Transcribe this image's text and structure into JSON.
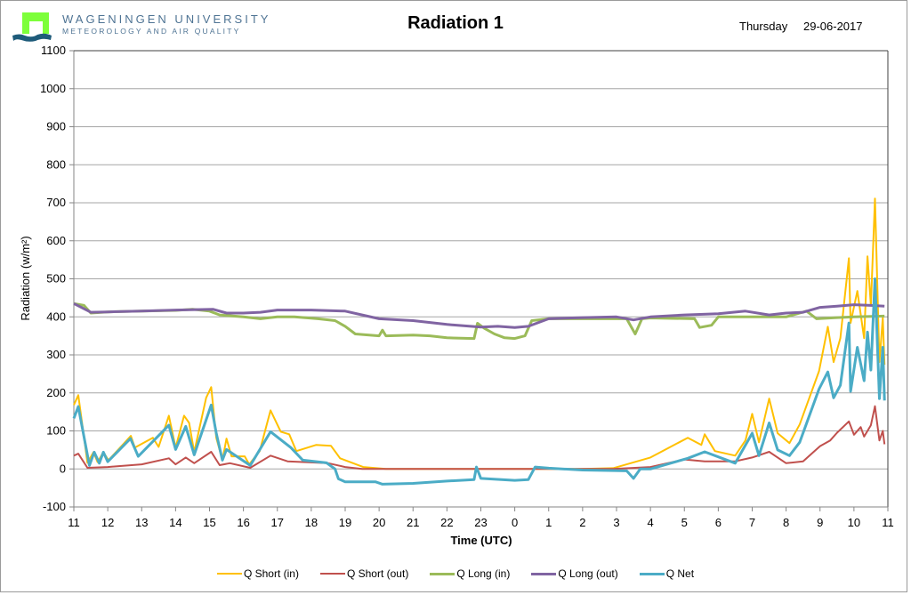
{
  "header": {
    "university": "WAGENINGEN UNIVERSITY",
    "department": "METEOROLOGY AND AIR QUALITY",
    "day": "Thursday",
    "date": "29-06-2017"
  },
  "chart_data": {
    "type": "line",
    "title": "Radiation 1",
    "xlabel": "Time (UTC)",
    "ylabel": "Radiation (w/m²)",
    "ylim": [
      -100,
      1100
    ],
    "xlim_hours_since_start": [
      0,
      24
    ],
    "yticks": [
      "-100",
      "0",
      "100",
      "200",
      "300",
      "400",
      "500",
      "600",
      "700",
      "800",
      "900",
      "1000",
      "1100"
    ],
    "xticks": [
      "11",
      "12",
      "13",
      "14",
      "15",
      "16",
      "17",
      "18",
      "19",
      "20",
      "21",
      "22",
      "23",
      "0",
      "1",
      "2",
      "3",
      "4",
      "5",
      "6",
      "7",
      "8",
      "9",
      "10",
      "11"
    ],
    "grid": "horizontal",
    "legend_position": "bottom",
    "series": [
      {
        "name": "Q Short (in)",
        "color": "#FFC000",
        "x": [
          0,
          0.13,
          0.4,
          0.58,
          0.7,
          0.87,
          1.02,
          1.3,
          1.68,
          1.8,
          2.33,
          2.5,
          2.8,
          3.0,
          3.25,
          3.4,
          3.55,
          3.9,
          4.05,
          4.2,
          4.38,
          4.5,
          4.65,
          5.04,
          5.17,
          5.48,
          5.8,
          6.1,
          6.35,
          6.56,
          7.14,
          7.58,
          7.85,
          8.53,
          9.2,
          12,
          15,
          15.9,
          17,
          18.1,
          18.5,
          18.6,
          18.9,
          19.5,
          19.8,
          20.0,
          20.2,
          20.5,
          20.75,
          21.1,
          21.4,
          21.97,
          22.23,
          22.4,
          22.6,
          22.85,
          22.9,
          23.1,
          23.3,
          23.4,
          23.5,
          23.62,
          23.75,
          23.85,
          23.9
        ],
        "y": [
          168,
          194,
          16,
          44,
          18,
          44,
          23,
          50,
          87,
          56,
          82,
          58,
          140,
          56,
          140,
          121,
          44,
          187,
          215,
          82,
          23,
          80,
          33,
          33,
          12,
          47,
          154,
          98,
          91,
          47,
          63,
          61,
          28,
          5,
          0,
          0,
          0,
          2,
          30,
          82,
          63,
          91,
          47,
          35,
          75,
          145,
          70,
          185,
          94,
          68,
          117,
          257,
          374,
          281,
          344,
          554,
          384,
          468,
          344,
          559,
          430,
          711,
          281,
          398,
          274
        ]
      },
      {
        "name": "Q Short (out)",
        "color": "#C0504D",
        "x": [
          0,
          0.13,
          0.4,
          1.0,
          2.0,
          2.8,
          3.0,
          3.3,
          3.55,
          4.05,
          4.3,
          4.6,
          5.2,
          5.8,
          6.3,
          7.5,
          8.0,
          8.5,
          12,
          15.9,
          17,
          18.0,
          18.6,
          19.5,
          20.0,
          20.5,
          21.0,
          21.5,
          22.0,
          22.3,
          22.5,
          22.85,
          23.0,
          23.2,
          23.3,
          23.5,
          23.62,
          23.75,
          23.85,
          23.9
        ],
        "y": [
          35,
          40,
          3,
          5,
          12,
          28,
          12,
          30,
          15,
          45,
          10,
          15,
          3,
          35,
          20,
          15,
          5,
          0,
          0,
          0,
          5,
          25,
          20,
          20,
          30,
          45,
          15,
          20,
          60,
          75,
          95,
          125,
          90,
          110,
          85,
          115,
          165,
          75,
          100,
          65
        ]
      },
      {
        "name": "Q Long (in)",
        "color": "#9BBB59",
        "x": [
          0,
          0.3,
          0.5,
          1,
          2,
          3,
          3.5,
          4.0,
          4.3,
          5,
          5.5,
          6,
          6.5,
          7.2,
          7.7,
          8.0,
          8.3,
          9.0,
          9.1,
          9.2,
          10,
          10.5,
          11,
          11.8,
          11.9,
          12.1,
          12.4,
          12.7,
          13.0,
          13.3,
          13.5,
          14,
          15,
          16.3,
          16.55,
          16.75,
          17,
          18.3,
          18.45,
          18.8,
          19,
          20,
          21,
          21.6,
          21.9,
          22.5,
          23,
          23.9
        ],
        "y": [
          435,
          430,
          410,
          413,
          415,
          417,
          420,
          415,
          405,
          400,
          395,
          400,
          400,
          395,
          390,
          375,
          355,
          350,
          365,
          350,
          352,
          350,
          345,
          343,
          383,
          370,
          355,
          345,
          343,
          350,
          390,
          395,
          395,
          395,
          355,
          395,
          397,
          395,
          372,
          378,
          400,
          400,
          400,
          415,
          395,
          398,
          400,
          402
        ]
      },
      {
        "name": "Q Long (out)",
        "color": "#8064A2",
        "x": [
          0,
          0.5,
          1,
          2,
          3,
          4.1,
          4.5,
          5,
          5.5,
          6,
          7,
          8,
          8.5,
          9,
          10,
          11,
          12,
          12.5,
          13,
          13.4,
          14,
          15,
          16,
          16.5,
          17,
          18,
          19,
          19.8,
          20.5,
          21,
          21.5,
          22,
          22.5,
          23,
          23.5,
          23.9
        ],
        "y": [
          435,
          412,
          413,
          415,
          418,
          420,
          410,
          410,
          412,
          418,
          418,
          415,
          405,
          395,
          390,
          380,
          373,
          375,
          372,
          375,
          395,
          398,
          400,
          392,
          400,
          405,
          408,
          415,
          405,
          410,
          412,
          425,
          428,
          432,
          430,
          428
        ]
      },
      {
        "name": "Q Net",
        "color": "#4BACC6",
        "x": [
          0,
          0.13,
          0.46,
          0.6,
          0.75,
          0.87,
          1.0,
          1.67,
          1.9,
          2.8,
          3.0,
          3.3,
          3.55,
          4.05,
          4.2,
          4.38,
          4.5,
          5.2,
          5.8,
          6.4,
          6.75,
          7.45,
          7.7,
          7.8,
          8.0,
          8.9,
          9.1,
          10,
          11,
          11.8,
          11.87,
          12.0,
          13.0,
          13.4,
          13.6,
          14,
          15,
          16.3,
          16.5,
          16.7,
          17,
          18.1,
          18.6,
          19.5,
          20.0,
          20.2,
          20.5,
          20.75,
          21.1,
          21.4,
          21.97,
          22.23,
          22.4,
          22.6,
          22.85,
          22.9,
          23.1,
          23.3,
          23.4,
          23.5,
          23.62,
          23.75,
          23.85,
          23.9
        ],
        "y": [
          133,
          164,
          9,
          44,
          15,
          44,
          19,
          80,
          33,
          115,
          51,
          112,
          37,
          168,
          94,
          23,
          51,
          9,
          98,
          56,
          23,
          16,
          0,
          -26,
          -34,
          -34,
          -40,
          -38,
          -32,
          -28,
          5,
          -25,
          -30,
          -28,
          5,
          2,
          -3,
          -5,
          -25,
          0,
          0,
          28,
          45,
          15,
          94,
          35,
          121,
          50,
          35,
          70,
          210,
          255,
          187,
          220,
          384,
          204,
          320,
          232,
          360,
          260,
          500,
          185,
          320,
          180
        ]
      }
    ]
  }
}
